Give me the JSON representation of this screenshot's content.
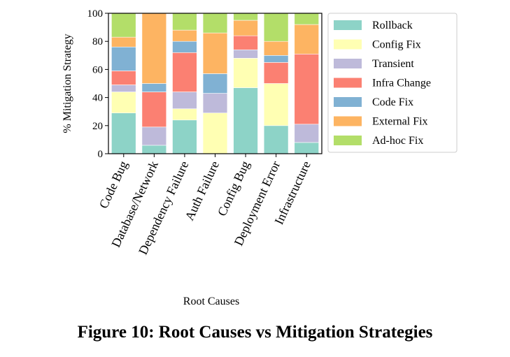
{
  "caption": "Figure 10: Root Causes vs Mitigation Strategies",
  "chart_data": {
    "type": "bar",
    "stacked": true,
    "title": "",
    "xlabel": "Root Causes",
    "ylabel": "% Mitigation Strategy",
    "ylim": [
      0,
      100
    ],
    "yticks": [
      0,
      20,
      40,
      60,
      80,
      100
    ],
    "grid": false,
    "legend_position": "right",
    "categories": [
      "Code Bug",
      "Database/Network",
      "Dependency Failure",
      "Auth Failure",
      "Config Bug",
      "Deployment Error",
      "Infrastructure"
    ],
    "series": [
      {
        "name": "Rollback",
        "color": "#8dd3c7",
        "values": [
          29,
          6,
          24,
          0,
          47,
          20,
          8
        ]
      },
      {
        "name": "Config Fix",
        "color": "#ffffb3",
        "values": [
          15,
          0,
          8,
          29,
          21,
          30,
          0
        ]
      },
      {
        "name": "Transient",
        "color": "#bebada",
        "values": [
          5,
          13,
          12,
          14,
          6,
          0,
          13
        ]
      },
      {
        "name": "Infra Change",
        "color": "#fb8072",
        "values": [
          10,
          25,
          28,
          0,
          10,
          15,
          50
        ]
      },
      {
        "name": "Code Fix",
        "color": "#80b1d3",
        "values": [
          17,
          6,
          8,
          14,
          0,
          5,
          0
        ]
      },
      {
        "name": "External Fix",
        "color": "#fdb462",
        "values": [
          7,
          50,
          8,
          29,
          11,
          10,
          21
        ]
      },
      {
        "name": "Ad-hoc Fix",
        "color": "#b3de69",
        "values": [
          17,
          0,
          12,
          14,
          5,
          20,
          8
        ]
      }
    ]
  }
}
